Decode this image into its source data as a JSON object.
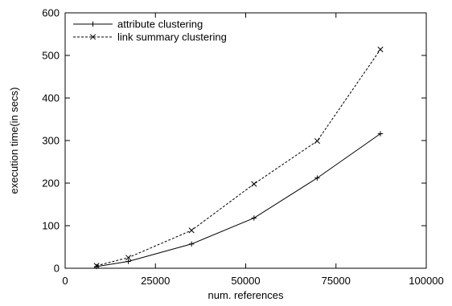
{
  "chart_data": {
    "type": "line",
    "title": "",
    "xlabel": "num. references",
    "ylabel": "execution time(in secs)",
    "xlim": [
      0,
      100000
    ],
    "ylim": [
      0,
      600
    ],
    "xticks": [
      0,
      25000,
      50000,
      75000,
      100000
    ],
    "xtick_labels": [
      "0",
      "25000",
      "50000",
      "75000",
      "100000"
    ],
    "yticks": [
      0,
      100,
      200,
      300,
      400,
      500,
      600
    ],
    "ytick_labels": [
      "0",
      "100",
      "200",
      "300",
      "400",
      "500",
      "600"
    ],
    "grid": false,
    "legend_position": "top-left",
    "series": [
      {
        "name": "attribute clustering",
        "line_style": "solid",
        "marker": "plus",
        "color": "#000000",
        "x": [
          8700,
          17500,
          35000,
          52300,
          69800,
          87300
        ],
        "y": [
          4,
          16,
          57,
          118,
          212,
          316
        ]
      },
      {
        "name": "link summary clustering",
        "line_style": "dashed",
        "marker": "cross",
        "color": "#000000",
        "x": [
          8700,
          17500,
          35000,
          52300,
          69800,
          87300
        ],
        "y": [
          6,
          25,
          89,
          198,
          299,
          514
        ]
      }
    ]
  }
}
